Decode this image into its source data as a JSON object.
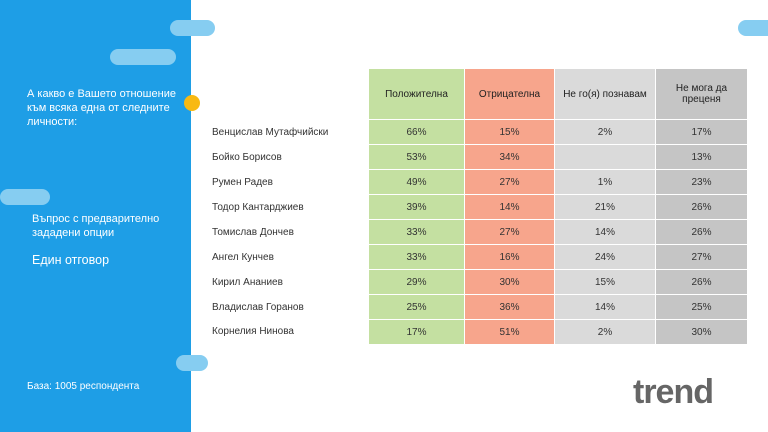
{
  "question": "А какво е Вашето отношение към всяка една от следните личности:",
  "question_type": "Въпрос с предварително зададени опции",
  "answer_type": "Един отговор",
  "base": "База: 1005 респондента",
  "logo_text": "trend",
  "colors": {
    "sidebar": "#1e9ee6",
    "pill": "#86cdf1",
    "accent_dot": "#f8b912",
    "positive": "#c4e0a1",
    "negative": "#f7a58c",
    "unknown": "#dadada",
    "cant_say": "#c5c5c5"
  },
  "table": {
    "headers": [
      "Положителна",
      "Отрицателна",
      "Не го(я) познавам",
      "Не мога да преценя"
    ],
    "rows": [
      {
        "name": "Венцислав Мутафчийски",
        "pos": "66%",
        "neg": "15%",
        "unk": "2%",
        "cant": "17%"
      },
      {
        "name": "Бойко Борисов",
        "pos": "53%",
        "neg": "34%",
        "unk": "",
        "cant": "13%"
      },
      {
        "name": "Румен Радев",
        "pos": "49%",
        "neg": "27%",
        "unk": "1%",
        "cant": "23%"
      },
      {
        "name": "Тодор Кантарджиев",
        "pos": "39%",
        "neg": "14%",
        "unk": "21%",
        "cant": "26%"
      },
      {
        "name": "Томислав Дончев",
        "pos": "33%",
        "neg": "27%",
        "unk": "14%",
        "cant": "26%"
      },
      {
        "name": "Ангел Кунчев",
        "pos": "33%",
        "neg": "16%",
        "unk": "24%",
        "cant": "27%"
      },
      {
        "name": "Кирил Ананиев",
        "pos": "29%",
        "neg": "30%",
        "unk": "15%",
        "cant": "26%"
      },
      {
        "name": "Владислав Горанов",
        "pos": "25%",
        "neg": "36%",
        "unk": "14%",
        "cant": "25%"
      },
      {
        "name": "Корнелия Нинова",
        "pos": "17%",
        "neg": "51%",
        "unk": "2%",
        "cant": "30%"
      }
    ]
  }
}
